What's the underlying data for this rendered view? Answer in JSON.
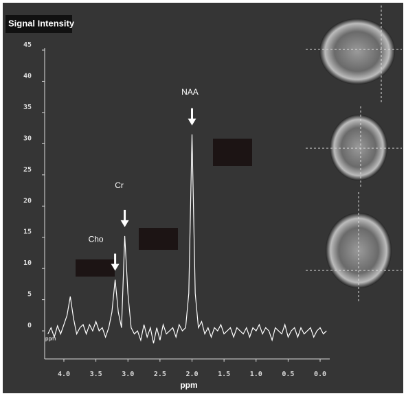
{
  "chart_data": {
    "type": "line",
    "title": "Signal Intensity",
    "x_label": "ppm",
    "corner_label": "ppm",
    "x": [
      4.25,
      4.2,
      4.15,
      4.1,
      4.05,
      4.0,
      3.95,
      3.9,
      3.85,
      3.8,
      3.75,
      3.7,
      3.65,
      3.6,
      3.55,
      3.5,
      3.45,
      3.4,
      3.35,
      3.3,
      3.25,
      3.2,
      3.15,
      3.1,
      3.05,
      3.0,
      2.95,
      2.9,
      2.85,
      2.8,
      2.75,
      2.7,
      2.65,
      2.6,
      2.55,
      2.5,
      2.45,
      2.4,
      2.35,
      2.3,
      2.25,
      2.2,
      2.15,
      2.1,
      2.05,
      2.0,
      1.95,
      1.9,
      1.85,
      1.8,
      1.75,
      1.7,
      1.65,
      1.6,
      1.55,
      1.5,
      1.45,
      1.4,
      1.35,
      1.3,
      1.25,
      1.2,
      1.15,
      1.1,
      1.05,
      1.0,
      0.95,
      0.9,
      0.85,
      0.8,
      0.75,
      0.7,
      0.65,
      0.6,
      0.55,
      0.5,
      0.45,
      0.4,
      0.35,
      0.3,
      0.25,
      0.2,
      0.15,
      0.1,
      0.05,
      0.0,
      -0.05,
      -0.1
    ],
    "values": [
      -0.5,
      0.5,
      -1,
      0.8,
      -0.5,
      1,
      2.5,
      5.5,
      2,
      -0.5,
      0.5,
      1,
      -0.5,
      1,
      0,
      1.5,
      0,
      0.5,
      -1,
      0.5,
      3,
      8.2,
      3,
      0.5,
      15.2,
      6,
      0.5,
      -0.5,
      0,
      -1.5,
      1,
      -1,
      0.5,
      -2,
      0.5,
      -1.5,
      1,
      -0.5,
      0,
      0.5,
      -1,
      1,
      0,
      0.5,
      6,
      31.5,
      6,
      0.5,
      1.5,
      -0.5,
      0.5,
      -1,
      0.5,
      0,
      1,
      -0.5,
      0,
      0.5,
      -1,
      0.5,
      0,
      -0.5,
      0.5,
      -1,
      0.5,
      0,
      1,
      -0.5,
      0.5,
      0,
      -1.5,
      0.5,
      0,
      -0.5,
      1,
      -1,
      0,
      0.5,
      -1,
      0.5,
      -0.5,
      0,
      0.5,
      -1,
      0,
      0.5,
      -0.5,
      0
    ],
    "color": "#ffffff",
    "xlim": [
      4.3,
      -0.15
    ],
    "xticks": [
      {
        "value": 4,
        "label": "4.0"
      },
      {
        "value": 3.5,
        "label": "3.5"
      },
      {
        "value": 3,
        "label": "3.0"
      },
      {
        "value": 2.5,
        "label": "2.5"
      },
      {
        "value": 2,
        "label": "2.0"
      },
      {
        "value": 1.5,
        "label": "1.5"
      },
      {
        "value": 1,
        "label": "1.0"
      },
      {
        "value": 0.5,
        "label": "0.5"
      },
      {
        "value": 0,
        "label": "0.0"
      }
    ],
    "ylim": [
      -4.5,
      45
    ],
    "yticks": [
      0,
      5,
      10,
      15,
      20,
      25,
      30,
      35,
      40,
      45
    ],
    "annotations": [
      {
        "text": "Cho",
        "x": 3.2,
        "y": 8.2
      },
      {
        "text": "Cr",
        "x": 3.05,
        "y": 15.2
      },
      {
        "text": "NAA",
        "x": 2.0,
        "y": 31.5
      }
    ]
  }
}
